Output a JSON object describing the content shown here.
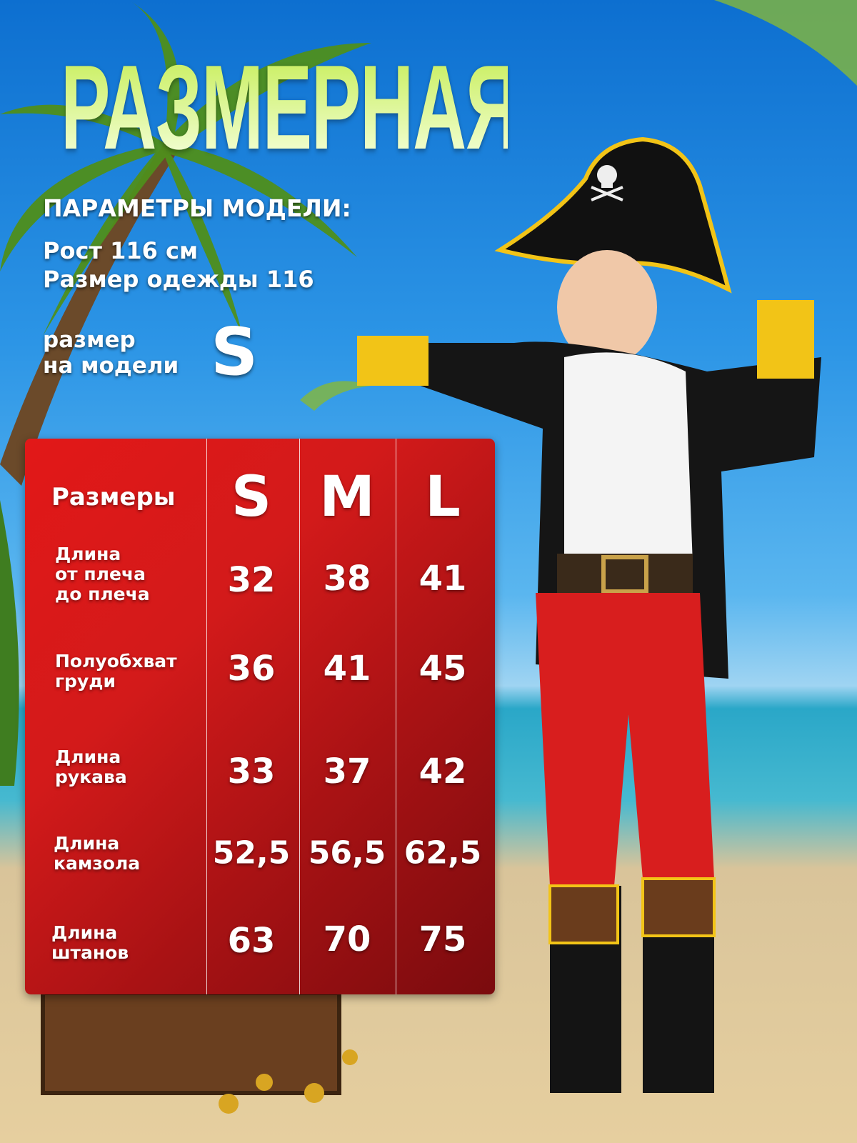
{
  "title": "РАЗМЕРНАЯ СЕТКА",
  "model_params": {
    "heading": "ПАРАМЕТРЫ МОДЕЛИ:",
    "height": "Рост 116 см",
    "clothing_size": "Размер одежды 116",
    "size_on_model_label_line1": "размер",
    "size_on_model_label_line2": "на модели",
    "size_on_model": "S"
  },
  "size_table": {
    "header_label": "Размеры",
    "sizes": [
      "S",
      "M",
      "L"
    ],
    "rows": [
      {
        "label": [
          "Длина",
          "от плеча",
          "до плеча"
        ],
        "values": [
          "32",
          "38",
          "41"
        ]
      },
      {
        "label": [
          "Полуобхват",
          "груди"
        ],
        "values": [
          "36",
          "41",
          "45"
        ]
      },
      {
        "label": [
          "Длина",
          "рукава"
        ],
        "values": [
          "33",
          "37",
          "42"
        ]
      },
      {
        "label": [
          "Длина",
          "камзола"
        ],
        "values": [
          "52,5",
          "56,5",
          "62,5"
        ]
      },
      {
        "label": [
          "Длина",
          "штанов"
        ],
        "values": [
          "63",
          "70",
          "75"
        ]
      }
    ]
  },
  "colors": {
    "table_red": "#d31a1a",
    "title_green": "#e6f5a8",
    "costume_yellow": "#f2c417"
  }
}
